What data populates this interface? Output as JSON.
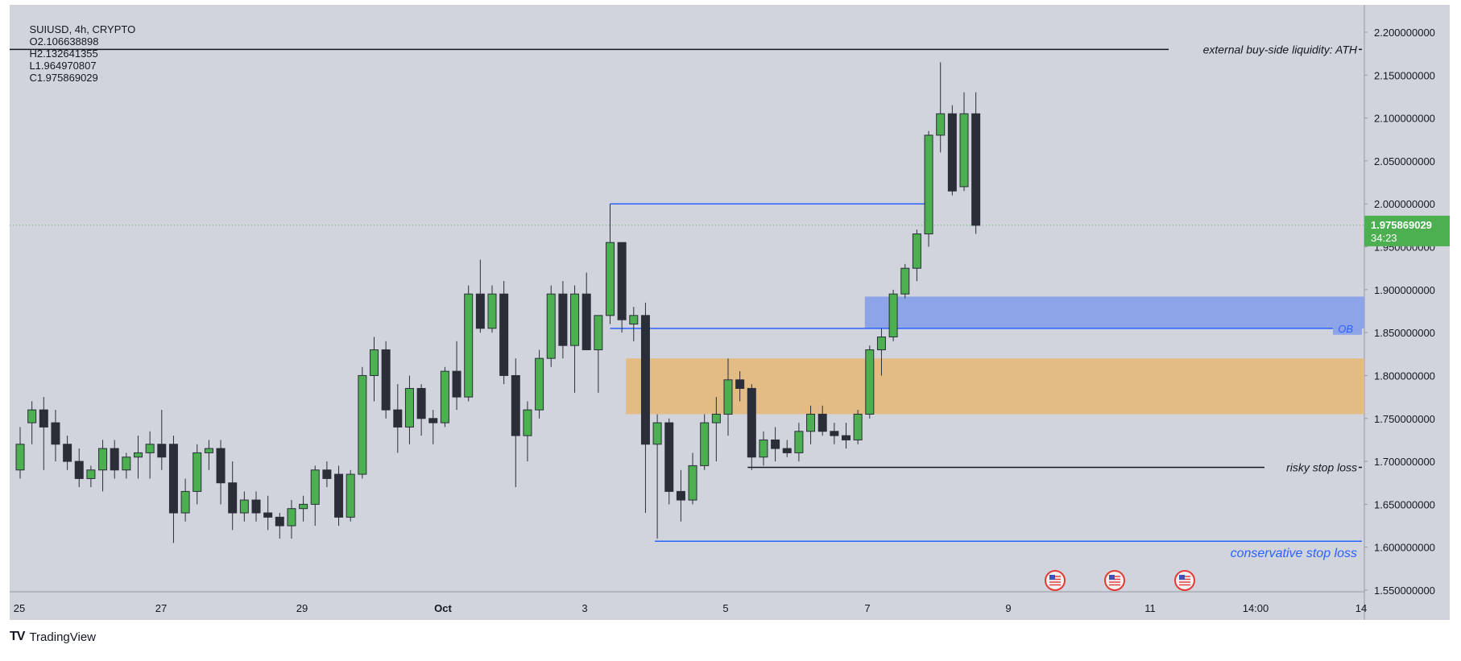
{
  "header": {
    "symbol": "SUIUSD, 4h, CRYPTO",
    "open": "O2.106638898",
    "high": "H2.132641355",
    "low": "L1.964970807",
    "close": "C1.975869029"
  },
  "price_badge": {
    "price": "1.975869029",
    "countdown": "34:23",
    "color": "#4caf50"
  },
  "branding": {
    "name": "TradingView",
    "logo_icon": "tradingview-logo-icon"
  },
  "colors": {
    "chart_bg": "#d1d4dc",
    "bull": "#4caf50",
    "bear": "#2a2e39",
    "wick": "#2a2e39",
    "ob_zone": "#8ea4e9",
    "fvg_zone": "#e3bb84",
    "blue_line": "#2962ff",
    "black_line": "#131722"
  },
  "chart_data": {
    "type": "candlestick",
    "title": "SUIUSD, 4h, CRYPTO",
    "ylim": [
      1.53,
      2.235
    ],
    "x_ticks": [
      "25",
      "27",
      "29",
      "Oct",
      "3",
      "5",
      "7",
      "9",
      "11",
      "14:00",
      "14"
    ],
    "y_ticks": [
      "1.550000000",
      "1.600000000",
      "1.650000000",
      "1.700000000",
      "1.750000000",
      "1.800000000",
      "1.850000000",
      "1.900000000",
      "1.950000000",
      "2.000000000",
      "2.050000000",
      "2.100000000",
      "2.150000000",
      "2.200000000"
    ],
    "candles": [
      [
        1.69,
        1.74,
        1.68,
        1.72
      ],
      [
        1.745,
        1.77,
        1.72,
        1.76
      ],
      [
        1.76,
        1.775,
        1.69,
        1.74
      ],
      [
        1.745,
        1.76,
        1.7,
        1.72
      ],
      [
        1.72,
        1.73,
        1.69,
        1.7
      ],
      [
        1.7,
        1.715,
        1.67,
        1.68
      ],
      [
        1.68,
        1.695,
        1.67,
        1.69
      ],
      [
        1.69,
        1.725,
        1.665,
        1.715
      ],
      [
        1.715,
        1.725,
        1.68,
        1.69
      ],
      [
        1.69,
        1.71,
        1.68,
        1.705
      ],
      [
        1.705,
        1.73,
        1.68,
        1.71
      ],
      [
        1.71,
        1.735,
        1.68,
        1.72
      ],
      [
        1.72,
        1.76,
        1.69,
        1.705
      ],
      [
        1.72,
        1.73,
        1.605,
        1.64
      ],
      [
        1.64,
        1.68,
        1.63,
        1.665
      ],
      [
        1.665,
        1.72,
        1.65,
        1.71
      ],
      [
        1.71,
        1.725,
        1.69,
        1.715
      ],
      [
        1.715,
        1.725,
        1.65,
        1.675
      ],
      [
        1.675,
        1.7,
        1.62,
        1.64
      ],
      [
        1.64,
        1.665,
        1.63,
        1.655
      ],
      [
        1.655,
        1.665,
        1.63,
        1.64
      ],
      [
        1.64,
        1.66,
        1.62,
        1.635
      ],
      [
        1.635,
        1.64,
        1.61,
        1.625
      ],
      [
        1.625,
        1.655,
        1.61,
        1.645
      ],
      [
        1.645,
        1.66,
        1.63,
        1.65
      ],
      [
        1.65,
        1.695,
        1.625,
        1.69
      ],
      [
        1.69,
        1.7,
        1.67,
        1.68
      ],
      [
        1.685,
        1.695,
        1.625,
        1.635
      ],
      [
        1.635,
        1.69,
        1.63,
        1.685
      ],
      [
        1.685,
        1.81,
        1.68,
        1.8
      ],
      [
        1.8,
        1.845,
        1.77,
        1.83
      ],
      [
        1.83,
        1.84,
        1.75,
        1.76
      ],
      [
        1.76,
        1.79,
        1.71,
        1.74
      ],
      [
        1.74,
        1.8,
        1.72,
        1.785
      ],
      [
        1.785,
        1.79,
        1.73,
        1.75
      ],
      [
        1.75,
        1.76,
        1.72,
        1.745
      ],
      [
        1.745,
        1.81,
        1.74,
        1.805
      ],
      [
        1.805,
        1.84,
        1.76,
        1.775
      ],
      [
        1.775,
        1.905,
        1.77,
        1.895
      ],
      [
        1.895,
        1.935,
        1.85,
        1.855
      ],
      [
        1.855,
        1.905,
        1.85,
        1.895
      ],
      [
        1.895,
        1.91,
        1.79,
        1.8
      ],
      [
        1.8,
        1.82,
        1.67,
        1.73
      ],
      [
        1.73,
        1.77,
        1.7,
        1.76
      ],
      [
        1.76,
        1.83,
        1.75,
        1.82
      ],
      [
        1.82,
        1.905,
        1.81,
        1.895
      ],
      [
        1.895,
        1.91,
        1.82,
        1.835
      ],
      [
        1.835,
        1.905,
        1.78,
        1.895
      ],
      [
        1.895,
        1.92,
        1.83,
        1.83
      ],
      [
        1.83,
        1.87,
        1.78,
        1.87
      ],
      [
        1.87,
        2.0,
        1.86,
        1.955
      ],
      [
        1.955,
        1.955,
        1.85,
        1.865
      ],
      [
        1.86,
        1.88,
        1.84,
        1.87
      ],
      [
        1.87,
        1.885,
        1.64,
        1.72
      ],
      [
        1.72,
        1.755,
        1.61,
        1.745
      ],
      [
        1.745,
        1.75,
        1.65,
        1.665
      ],
      [
        1.665,
        1.69,
        1.63,
        1.655
      ],
      [
        1.655,
        1.71,
        1.65,
        1.695
      ],
      [
        1.695,
        1.755,
        1.69,
        1.745
      ],
      [
        1.745,
        1.775,
        1.7,
        1.755
      ],
      [
        1.755,
        1.82,
        1.73,
        1.795
      ],
      [
        1.795,
        1.805,
        1.77,
        1.785
      ],
      [
        1.785,
        1.79,
        1.69,
        1.705
      ],
      [
        1.705,
        1.735,
        1.695,
        1.725
      ],
      [
        1.725,
        1.74,
        1.7,
        1.715
      ],
      [
        1.715,
        1.725,
        1.705,
        1.71
      ],
      [
        1.71,
        1.745,
        1.7,
        1.735
      ],
      [
        1.735,
        1.765,
        1.72,
        1.755
      ],
      [
        1.755,
        1.765,
        1.73,
        1.735
      ],
      [
        1.735,
        1.745,
        1.72,
        1.73
      ],
      [
        1.73,
        1.745,
        1.715,
        1.725
      ],
      [
        1.725,
        1.76,
        1.72,
        1.755
      ],
      [
        1.755,
        1.835,
        1.75,
        1.83
      ],
      [
        1.83,
        1.855,
        1.8,
        1.845
      ],
      [
        1.845,
        1.9,
        1.84,
        1.895
      ],
      [
        1.895,
        1.93,
        1.89,
        1.925
      ],
      [
        1.925,
        1.97,
        1.91,
        1.965
      ],
      [
        1.965,
        2.085,
        1.95,
        2.08
      ],
      [
        2.08,
        2.165,
        2.06,
        2.105
      ],
      [
        2.105,
        2.115,
        2.01,
        2.015
      ],
      [
        2.02,
        2.13,
        2.015,
        2.105
      ],
      [
        2.105,
        2.13,
        1.965,
        1.975
      ]
    ],
    "zones": [
      {
        "name": "ob",
        "label": "OB",
        "from": 1.855,
        "to": 1.892
      },
      {
        "name": "fvg",
        "label": "",
        "from": 1.755,
        "to": 1.82
      }
    ],
    "levels": [
      {
        "name": "ath",
        "label": "external buy-side liquidity: ATH",
        "price": 2.18
      },
      {
        "name": "swing-high",
        "label": "",
        "price": 2.0
      },
      {
        "name": "ob-level",
        "label": "",
        "price": 1.855
      },
      {
        "name": "risky-stop",
        "label": "risky stop loss",
        "price": 1.693
      },
      {
        "name": "conservative-stop",
        "label": "conservative stop loss",
        "price": 1.607
      }
    ],
    "event_icons": [
      "us-flag-icon",
      "us-flag-icon",
      "us-flag-icon"
    ]
  }
}
